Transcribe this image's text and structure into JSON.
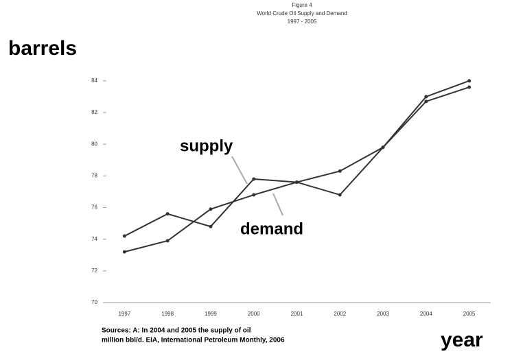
{
  "chart_data": {
    "type": "line",
    "title": [
      "Figure 4",
      "World Crude Oil Supply and Demand",
      "1997 - 2005"
    ],
    "y_label": "barrels",
    "x_label": "year",
    "annotations": [
      "supply",
      "demand"
    ],
    "footnote": [
      "Sources: A: In 2004 and 2005 the supply of oil",
      "million bbl/d. EIA, International Petroleum Monthly, 2006"
    ],
    "categories": [
      "1997",
      "1998",
      "1999",
      "2000",
      "2001",
      "2002",
      "2003",
      "2004",
      "2005"
    ],
    "series": [
      {
        "name": "supply",
        "color": "#333333",
        "values": [
          74.2,
          75.6,
          74.8,
          77.8,
          77.6,
          76.8,
          79.8,
          83.0,
          84.0
        ]
      },
      {
        "name": "demand",
        "color": "#333333",
        "values": [
          73.2,
          73.9,
          75.9,
          76.8,
          77.6,
          78.3,
          79.8,
          82.7,
          83.6
        ]
      }
    ],
    "ylim": [
      70,
      84.6
    ],
    "yticks": [
      70,
      72,
      74,
      76,
      78,
      80,
      82,
      84
    ],
    "grid": false
  }
}
